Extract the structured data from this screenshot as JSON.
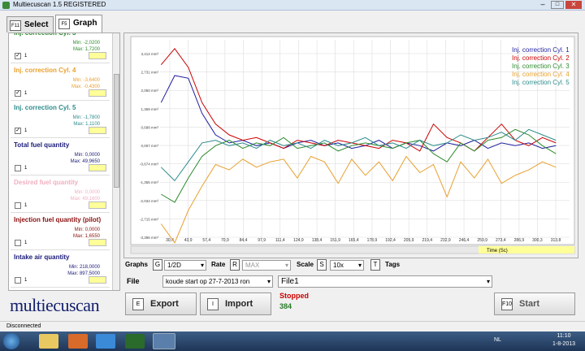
{
  "window": {
    "title": "Multiecuscan 1.5 REGISTERED"
  },
  "tabs": [
    {
      "key": "F11",
      "label": "Select"
    },
    {
      "key": "F5",
      "label": "Graph"
    }
  ],
  "parameters": [
    {
      "name": "Inj. correction Cyl. 3",
      "color": "#2e8b2e",
      "min": "Min: -2,0200",
      "max": "Max: 1,7200",
      "checked": true,
      "value": "1"
    },
    {
      "name": "Inj. correction Cyl. 4",
      "color": "#e8a030",
      "min": "Min: -3,6400",
      "max": "Max: -0,4300",
      "checked": true,
      "value": "1"
    },
    {
      "name": "Inj. correction Cyl. 5",
      "color": "#2e8b8b",
      "min": "Min: -1,7800",
      "max": "Max: 1,1100",
      "checked": true,
      "value": "1"
    },
    {
      "name": "Total fuel quantity",
      "color": "#1a1a7a",
      "min": "Min: 0,0000",
      "max": "Max: 49,9650",
      "checked": false,
      "value": "1"
    },
    {
      "name": "Desired fuel quantity",
      "color": "#f0b0c0",
      "min": "Min: 0,0000",
      "max": "Max: 49,1600",
      "checked": false,
      "value": "1"
    },
    {
      "name": "Injection fuel quantity (pilot)",
      "color": "#8b1010",
      "min": "Min: 0,0000",
      "max": "Max: 1,6550",
      "checked": false,
      "value": "1"
    },
    {
      "name": "Intake air quantity",
      "color": "#1a1a7a",
      "min": "Min: 218,0000",
      "max": "Max: 897,5000",
      "checked": false,
      "value": "1"
    }
  ],
  "graph": {
    "type": "line",
    "grid": true,
    "xlabel": "Time (Sc)",
    "x": [
      24,
      34,
      44,
      54,
      64,
      74,
      84,
      94,
      104,
      114,
      124,
      134,
      144,
      154,
      164,
      174,
      184,
      194,
      204,
      214,
      224,
      234,
      244,
      254,
      264,
      274,
      284,
      294,
      304,
      314
    ],
    "xticks": [
      {
        "value": 30.4,
        "label": "30,4"
      },
      {
        "value": 43.9,
        "label": "43,9"
      },
      {
        "value": 57.4,
        "label": "57,4"
      },
      {
        "value": 70.9,
        "label": "70,9"
      },
      {
        "value": 84.4,
        "label": "84,4"
      },
      {
        "value": 97.9,
        "label": "97,9"
      },
      {
        "value": 111.4,
        "label": "111,4"
      },
      {
        "value": 124.9,
        "label": "124,9"
      },
      {
        "value": 138.4,
        "label": "138,4"
      },
      {
        "value": 151.9,
        "label": "151,9"
      },
      {
        "value": 165.4,
        "label": "165,4"
      },
      {
        "value": 178.9,
        "label": "178,9"
      },
      {
        "value": 192.4,
        "label": "192,4"
      },
      {
        "value": 205.9,
        "label": "205,9"
      },
      {
        "value": 219.4,
        "label": "219,4"
      },
      {
        "value": 232.9,
        "label": "232,9"
      },
      {
        "value": 246.4,
        "label": "246,4"
      },
      {
        "value": 259.9,
        "label": "259,9"
      },
      {
        "value": 273.4,
        "label": "273,4"
      },
      {
        "value": 286.9,
        "label": "286,9"
      },
      {
        "value": 300.3,
        "label": "300,3"
      },
      {
        "value": 313.8,
        "label": "313,8"
      }
    ],
    "yticks": [
      {
        "value": 3.412,
        "label": "3,412 mm³"
      },
      {
        "value": 2.731,
        "label": "2,731 mm³"
      },
      {
        "value": 2.05,
        "label": "2,050 mm³"
      },
      {
        "value": 1.369,
        "label": "1,369 mm³"
      },
      {
        "value": 0.688,
        "label": "0,688 mm³"
      },
      {
        "value": 0.007,
        "label": "0,007 mm³"
      },
      {
        "value": -0.674,
        "label": "-0,674 mm³"
      },
      {
        "value": -1.355,
        "label": "-1,355 mm³"
      },
      {
        "value": -2.034,
        "label": "-2,034 mm³"
      },
      {
        "value": -2.715,
        "label": "-2,715 mm³"
      },
      {
        "value": -3.396,
        "label": "-3,396 mm³"
      }
    ],
    "series": [
      {
        "name": "Inj. correction Cyl. 1",
        "color": "#1f1f9f",
        "values": [
          1.6,
          2.6,
          2.5,
          1.2,
          0.4,
          0.1,
          0.2,
          0.0,
          0.1,
          -0.1,
          0.1,
          0.2,
          0.0,
          0.1,
          -0.1,
          0.0,
          0.2,
          -0.1,
          0.1,
          0.0,
          -0.2,
          0.1,
          0.0,
          0.2,
          -0.1,
          0.1,
          0.0,
          0.1,
          -0.1,
          0.0
        ]
      },
      {
        "name": "Inj. correction Cyl. 2",
        "color": "#cc0000",
        "values": [
          3.0,
          3.6,
          2.9,
          1.6,
          0.8,
          0.4,
          0.2,
          0.3,
          0.1,
          -0.1,
          0.2,
          0.1,
          0.0,
          0.2,
          0.1,
          0.0,
          -0.1,
          0.2,
          0.1,
          -0.2,
          0.8,
          0.3,
          0.1,
          -0.2,
          0.3,
          0.8,
          0.2,
          0.0,
          0.3,
          0.1
        ]
      },
      {
        "name": "Inj. correction Cyl. 3",
        "color": "#2e8b2e",
        "values": [
          -1.8,
          -2.1,
          -1.2,
          -0.4,
          0.0,
          0.2,
          -0.1,
          0.1,
          0.0,
          0.3,
          -0.1,
          0.0,
          0.1,
          -0.2,
          0.0,
          0.1,
          0.0,
          -0.1,
          0.1,
          0.2,
          -0.3,
          -0.6,
          0.1,
          -0.2,
          0.2,
          0.3,
          0.6,
          0.4,
          0.0,
          -0.3
        ]
      },
      {
        "name": "Inj. correction Cyl. 4",
        "color": "#e8a030",
        "values": [
          -2.9,
          -3.6,
          -2.4,
          -1.5,
          -0.7,
          -0.9,
          -0.5,
          -0.8,
          -0.6,
          -0.5,
          -1.2,
          -0.4,
          -0.6,
          -1.4,
          -0.5,
          -1.1,
          -0.6,
          -1.3,
          -0.4,
          -1.0,
          -0.7,
          -1.9,
          -0.6,
          -1.2,
          -0.5,
          -1.4,
          -1.1,
          -0.9,
          -0.6,
          -0.8
        ]
      },
      {
        "name": "Inj. correction Cyl. 5",
        "color": "#2e8b8b",
        "values": [
          -0.8,
          -1.3,
          -0.6,
          0.1,
          0.2,
          0.0,
          0.1,
          -0.1,
          0.2,
          0.0,
          0.1,
          -0.1,
          0.2,
          0.0,
          0.1,
          0.3,
          0.0,
          0.1,
          -0.1,
          0.2,
          0.0,
          0.1,
          0.4,
          0.2,
          0.3,
          0.5,
          0.2,
          0.6,
          0.4,
          0.2
        ]
      }
    ]
  },
  "controls": {
    "graphs_label": "Graphs",
    "graphs_key": "G",
    "graphs_value": "1/2D",
    "rate_label": "Rate",
    "rate_key": "R",
    "rate_value": "MAX",
    "scale_label": "Scale",
    "scale_key": "S",
    "scale_value": "10x",
    "tags_key": "T",
    "tags_label": "Tags",
    "file_label": "File",
    "file_value": "koude start op 27-7-2013 ron",
    "file_name": "File1",
    "status": "Stopped",
    "count": "384"
  },
  "buttons": [
    {
      "key": "E",
      "label": "Export"
    },
    {
      "key": "I",
      "label": "Import"
    },
    {
      "key": "F10",
      "label": "Start"
    }
  ],
  "logo": "multiecuscan",
  "statusbar": "Disconnected",
  "taskbar": {
    "language": "NL",
    "time": "11:10",
    "date": "1-8-2013"
  }
}
